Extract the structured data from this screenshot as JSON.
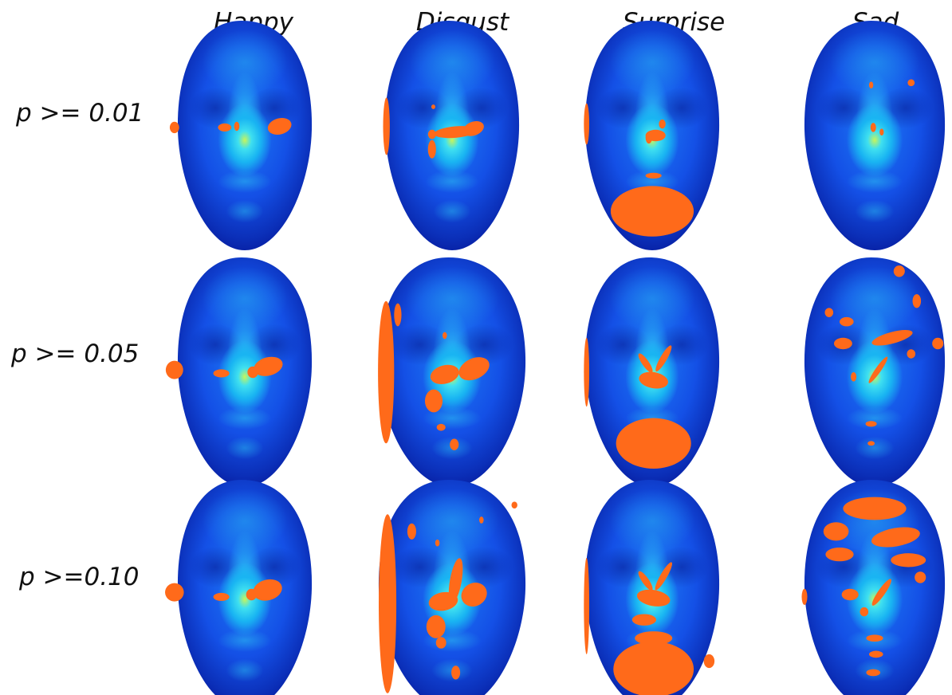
{
  "columns": [
    {
      "label": "Happy"
    },
    {
      "label": "Disgust"
    },
    {
      "label": "Surprise"
    },
    {
      "label": "Sad"
    }
  ],
  "rows": [
    {
      "label": "p >= 0.01"
    },
    {
      "label": "p >= 0.05"
    },
    {
      "label": "p >=0.10"
    }
  ],
  "colors": {
    "face_edge": "#061a9c",
    "face_mid": "#1360f0",
    "face_light": "#19c8f5",
    "face_peak": "#b4f25a",
    "highlight": "#ff6a1a",
    "background": "#ffffff"
  }
}
